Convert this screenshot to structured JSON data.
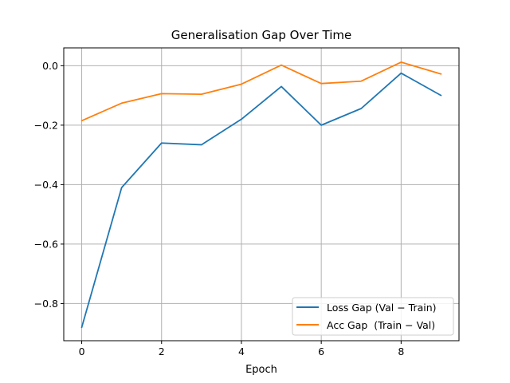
{
  "chart_data": {
    "type": "line",
    "title": "Generalisation Gap Over Time",
    "xlabel": "Epoch",
    "ylabel": "",
    "x": [
      0,
      1,
      2,
      3,
      4,
      5,
      6,
      7,
      8,
      9
    ],
    "xlim": [
      -0.45,
      9.45
    ],
    "ylim": [
      -0.925,
      0.06
    ],
    "xticks": [
      0,
      2,
      4,
      6,
      8
    ],
    "yticks": [
      0.0,
      -0.2,
      -0.4,
      -0.6,
      -0.8
    ],
    "xtick_labels": [
      "0",
      "2",
      "4",
      "6",
      "8"
    ],
    "ytick_labels": [
      "0.0",
      "−0.2",
      "−0.4",
      "−0.6",
      "−0.8"
    ],
    "grid": true,
    "legend_position": "lower-right",
    "series": [
      {
        "name": "Loss Gap (Val − Train)",
        "color": "#1f77b4",
        "values": [
          -0.88,
          -0.41,
          -0.26,
          -0.266,
          -0.18,
          -0.07,
          -0.2,
          -0.144,
          -0.025,
          -0.1
        ]
      },
      {
        "name": "Acc Gap  (Train − Val)",
        "color": "#ff7f0e",
        "values": [
          -0.185,
          -0.126,
          -0.094,
          -0.096,
          -0.062,
          0.002,
          -0.06,
          -0.052,
          0.012,
          -0.028
        ]
      }
    ]
  }
}
